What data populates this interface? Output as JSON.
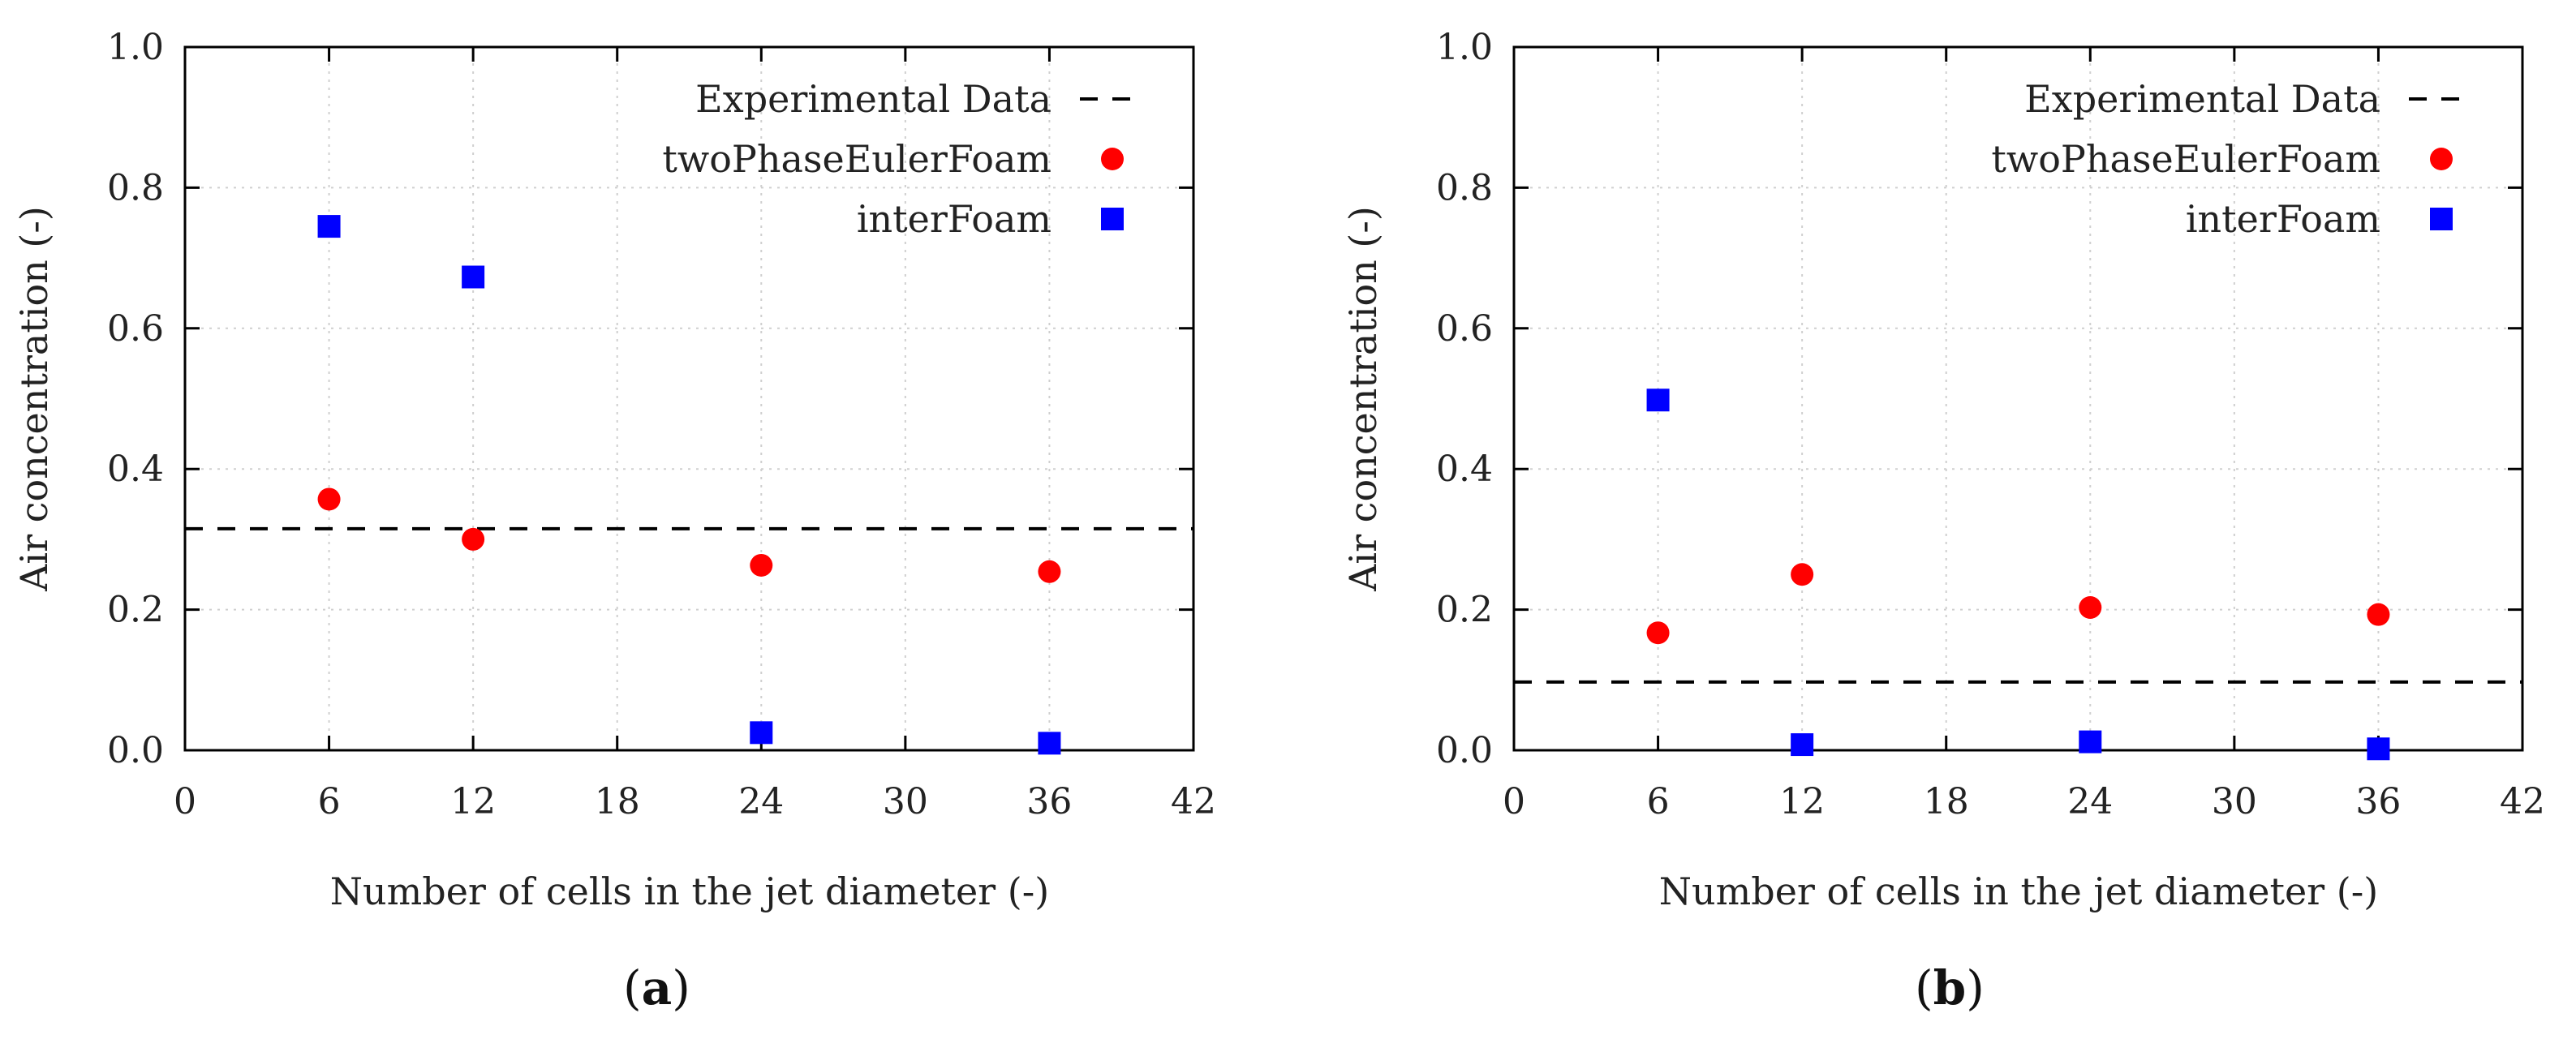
{
  "colors": {
    "experimental": "#000000",
    "twoPhaseEulerFoam": "#ff0000",
    "interFoam": "#0000ff"
  },
  "chart_data": [
    {
      "type": "scatter",
      "panel_label": "a",
      "xlabel": "Number of cells in the jet diameter (-)",
      "ylabel": "Air concentration (-)",
      "xlim": [
        0,
        42
      ],
      "ylim": [
        0.0,
        1.0
      ],
      "xticks": [
        "0",
        "6",
        "12",
        "18",
        "24",
        "30",
        "36",
        "42"
      ],
      "yticks": [
        "0.0",
        "0.2",
        "0.4",
        "0.6",
        "0.8",
        "1.0"
      ],
      "grid": true,
      "legend": "top-right",
      "reference_line": {
        "name": "Experimental Data",
        "y": 0.315
      },
      "series": [
        {
          "name": "twoPhaseEulerFoam",
          "marker": "circle",
          "x": [
            6,
            12,
            24,
            36
          ],
          "y": [
            0.357,
            0.3,
            0.263,
            0.254
          ]
        },
        {
          "name": "interFoam",
          "marker": "square",
          "x": [
            6,
            12,
            24,
            36
          ],
          "y": [
            0.745,
            0.673,
            0.025,
            0.01
          ]
        }
      ]
    },
    {
      "type": "scatter",
      "panel_label": "b",
      "xlabel": "Number of cells in the jet diameter (-)",
      "ylabel": "Air concentration (-)",
      "xlim": [
        0,
        42
      ],
      "ylim": [
        0.0,
        1.0
      ],
      "xticks": [
        "0",
        "6",
        "12",
        "18",
        "24",
        "30",
        "36",
        "42"
      ],
      "yticks": [
        "0.0",
        "0.2",
        "0.4",
        "0.6",
        "0.8",
        "1.0"
      ],
      "grid": true,
      "legend": "top-right",
      "reference_line": {
        "name": "Experimental Data",
        "y": 0.097
      },
      "series": [
        {
          "name": "twoPhaseEulerFoam",
          "marker": "circle",
          "x": [
            6,
            12,
            24,
            36
          ],
          "y": [
            0.167,
            0.25,
            0.203,
            0.193
          ]
        },
        {
          "name": "interFoam",
          "marker": "square",
          "x": [
            6,
            12,
            24,
            36
          ],
          "y": [
            0.498,
            0.008,
            0.012,
            0.002
          ]
        }
      ]
    }
  ]
}
